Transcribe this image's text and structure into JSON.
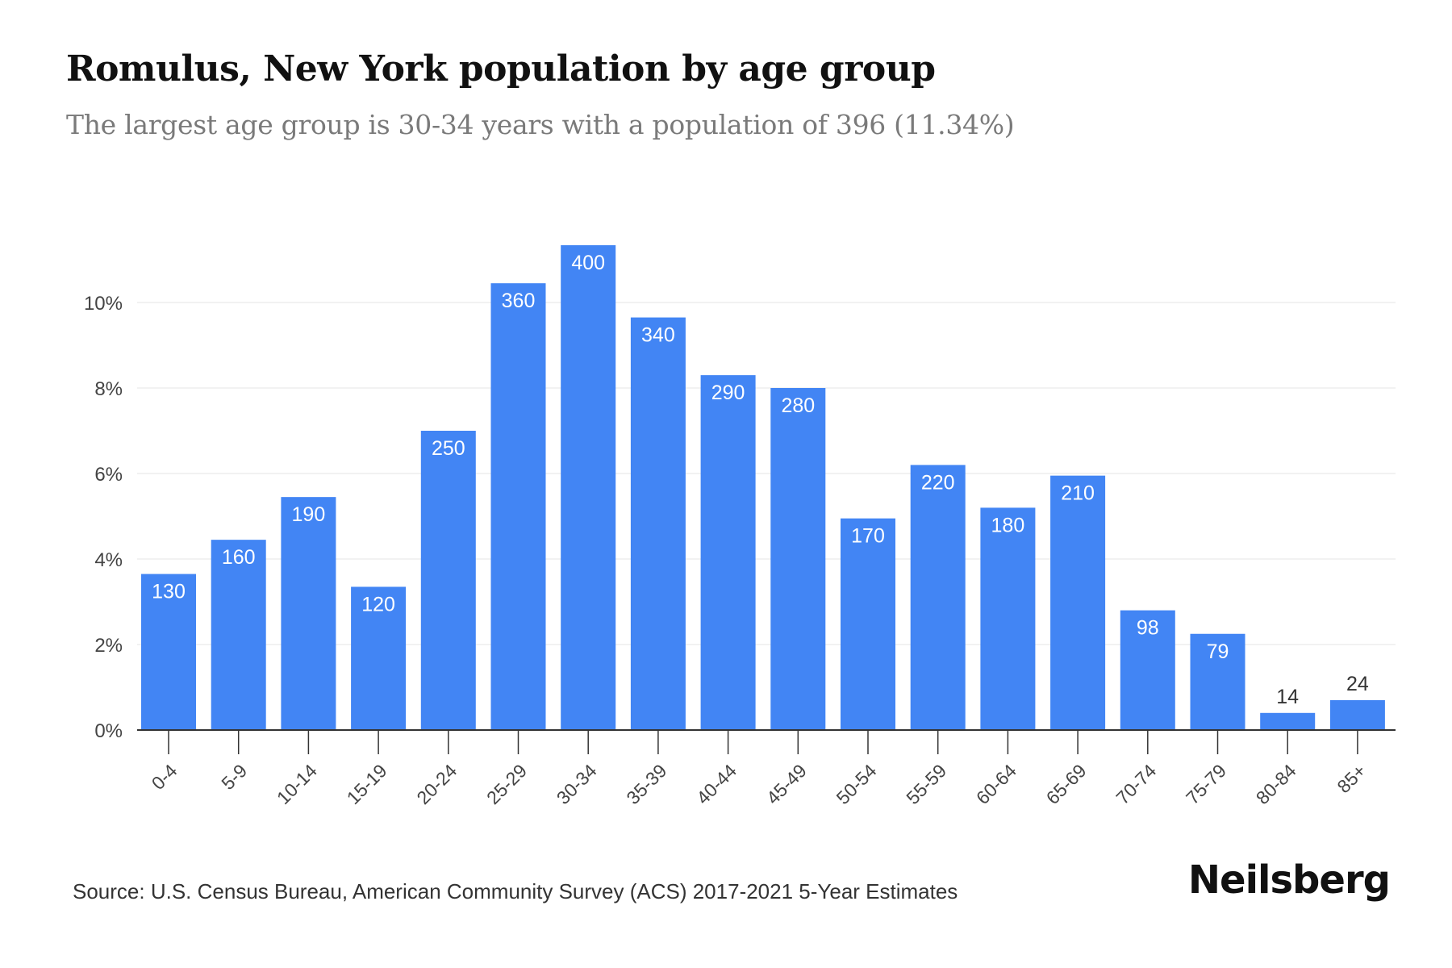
{
  "header": {
    "title": "Romulus, New York population by age group",
    "subtitle": "The largest age group is 30-34 years with a population of 396 (11.34%)"
  },
  "footer": {
    "source": "Source: U.S. Census Bureau, American Community Survey (ACS) 2017-2021 5-Year Estimates",
    "brand": "Neilsberg"
  },
  "colors": {
    "bar": "#4285f4",
    "grid": "#eeeeee",
    "axis": "#333333",
    "tick_label": "#444444",
    "label_inside": "#ffffff",
    "label_outside": "#333333"
  },
  "chart_data": {
    "type": "bar",
    "categories": [
      "0-4",
      "5-9",
      "10-14",
      "15-19",
      "20-24",
      "25-29",
      "30-34",
      "35-39",
      "40-44",
      "45-49",
      "50-54",
      "55-59",
      "60-64",
      "65-69",
      "70-74",
      "75-79",
      "80-84",
      "85+"
    ],
    "values": [
      3.65,
      4.45,
      5.45,
      3.35,
      7.0,
      10.45,
      11.34,
      9.65,
      8.3,
      8.0,
      4.95,
      6.2,
      5.2,
      5.95,
      2.8,
      2.25,
      0.4,
      0.7
    ],
    "data_labels": [
      "130",
      "160",
      "190",
      "120",
      "250",
      "360",
      "400",
      "340",
      "290",
      "280",
      "170",
      "220",
      "180",
      "210",
      "98",
      "79",
      "14",
      "24"
    ],
    "y_ticks": [
      0,
      2,
      4,
      6,
      8,
      10
    ],
    "y_tick_labels": [
      "0%",
      "2%",
      "4%",
      "6%",
      "8%",
      "10%"
    ],
    "ylim": [
      0,
      11.34
    ],
    "grid": true,
    "legend": "none"
  }
}
